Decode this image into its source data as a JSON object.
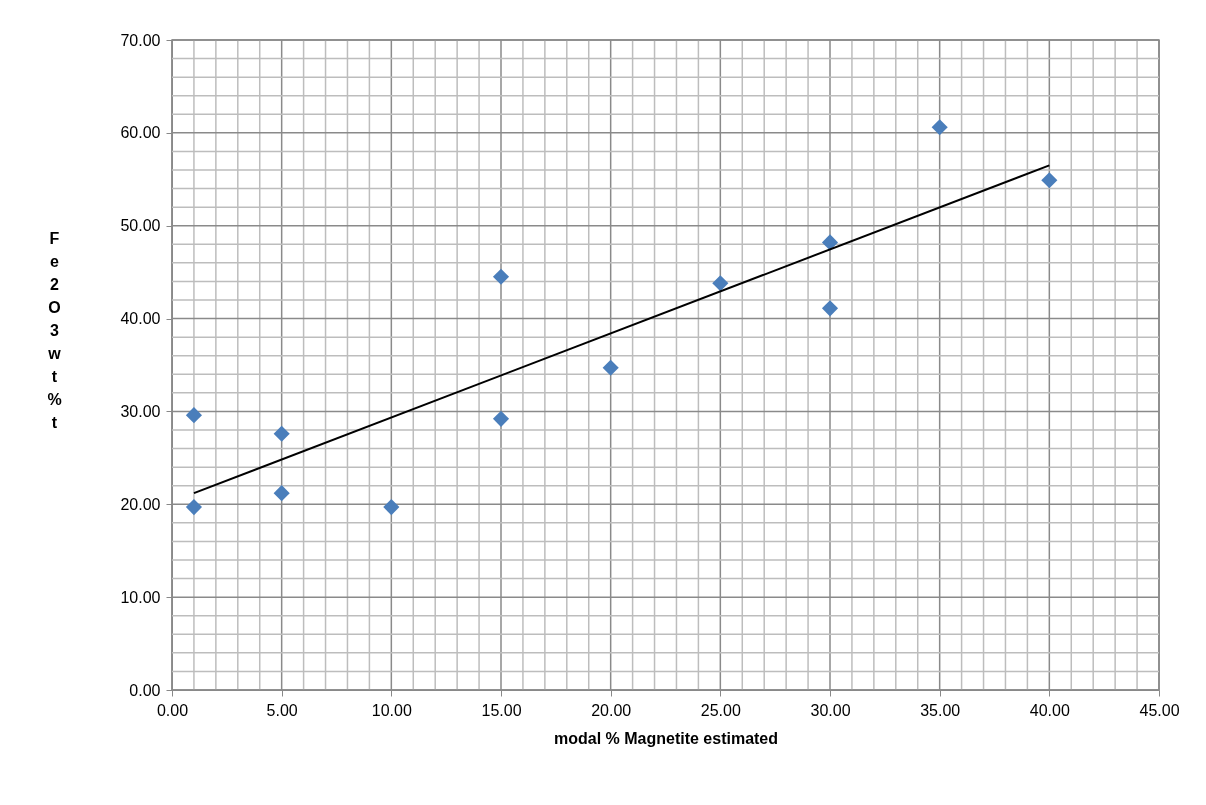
{
  "chart_data": {
    "type": "scatter",
    "xlabel": "modal % Magnetite estimated",
    "ylabel": "Fe2O3wt%t",
    "series": [
      {
        "color": "#4a7ebb",
        "marker": "diamond",
        "x": [
          1,
          1,
          5,
          5,
          10,
          15,
          15,
          20,
          25,
          30,
          30,
          35,
          40
        ],
        "values": [
          29.6,
          19.7,
          27.6,
          21.2,
          19.7,
          44.5,
          29.2,
          34.7,
          43.8,
          48.2,
          41.1,
          60.6,
          54.9
        ]
      },
      {
        "type": "line",
        "color": "#000000",
        "marker": "none",
        "line_style": "solid",
        "x": [
          1,
          40
        ],
        "values": [
          21.2,
          56.5
        ]
      }
    ],
    "xlim": [
      0,
      45
    ],
    "ylim": [
      0,
      70
    ],
    "xticks": [
      {
        "value": 0,
        "label": "0.00"
      },
      {
        "value": 1,
        "label": null
      },
      {
        "value": 2,
        "label": null
      },
      {
        "value": 3,
        "label": null
      },
      {
        "value": 4,
        "label": null
      },
      {
        "value": 5,
        "label": "5.00"
      },
      {
        "value": 6,
        "label": null
      },
      {
        "value": 7,
        "label": null
      },
      {
        "value": 8,
        "label": null
      },
      {
        "value": 9,
        "label": null
      },
      {
        "value": 10,
        "label": "10.00"
      },
      {
        "value": 11,
        "label": null
      },
      {
        "value": 12,
        "label": null
      },
      {
        "value": 13,
        "label": null
      },
      {
        "value": 14,
        "label": null
      },
      {
        "value": 15,
        "label": "15.00"
      },
      {
        "value": 16,
        "label": null
      },
      {
        "value": 17,
        "label": null
      },
      {
        "value": 18,
        "label": null
      },
      {
        "value": 19,
        "label": null
      },
      {
        "value": 20,
        "label": "20.00"
      },
      {
        "value": 21,
        "label": null
      },
      {
        "value": 22,
        "label": null
      },
      {
        "value": 23,
        "label": null
      },
      {
        "value": 24,
        "label": null
      },
      {
        "value": 25,
        "label": "25.00"
      },
      {
        "value": 26,
        "label": null
      },
      {
        "value": 27,
        "label": null
      },
      {
        "value": 28,
        "label": null
      },
      {
        "value": 29,
        "label": null
      },
      {
        "value": 30,
        "label": "30.00"
      },
      {
        "value": 31,
        "label": null
      },
      {
        "value": 32,
        "label": null
      },
      {
        "value": 33,
        "label": null
      },
      {
        "value": 34,
        "label": null
      },
      {
        "value": 35,
        "label": "35.00"
      },
      {
        "value": 36,
        "label": null
      },
      {
        "value": 37,
        "label": null
      },
      {
        "value": 38,
        "label": null
      },
      {
        "value": 39,
        "label": null
      },
      {
        "value": 40,
        "label": "40.00"
      },
      {
        "value": 41,
        "label": null
      },
      {
        "value": 42,
        "label": null
      },
      {
        "value": 43,
        "label": null
      },
      {
        "value": 44,
        "label": null
      },
      {
        "value": 45,
        "label": "45.00"
      }
    ],
    "yticks": [
      {
        "value": 0,
        "label": "0.00"
      },
      {
        "value": 2,
        "label": null
      },
      {
        "value": 4,
        "label": null
      },
      {
        "value": 6,
        "label": null
      },
      {
        "value": 8,
        "label": null
      },
      {
        "value": 10,
        "label": "10.00"
      },
      {
        "value": 12,
        "label": null
      },
      {
        "value": 14,
        "label": null
      },
      {
        "value": 16,
        "label": null
      },
      {
        "value": 18,
        "label": null
      },
      {
        "value": 20,
        "label": "20.00"
      },
      {
        "value": 22,
        "label": null
      },
      {
        "value": 24,
        "label": null
      },
      {
        "value": 26,
        "label": null
      },
      {
        "value": 28,
        "label": null
      },
      {
        "value": 30,
        "label": "30.00"
      },
      {
        "value": 32,
        "label": null
      },
      {
        "value": 34,
        "label": null
      },
      {
        "value": 36,
        "label": null
      },
      {
        "value": 38,
        "label": null
      },
      {
        "value": 40,
        "label": "40.00"
      },
      {
        "value": 42,
        "label": null
      },
      {
        "value": 44,
        "label": null
      },
      {
        "value": 46,
        "label": null
      },
      {
        "value": 48,
        "label": null
      },
      {
        "value": 50,
        "label": "50.00"
      },
      {
        "value": 52,
        "label": null
      },
      {
        "value": 54,
        "label": null
      },
      {
        "value": 56,
        "label": null
      },
      {
        "value": 58,
        "label": null
      },
      {
        "value": 60,
        "label": "60.00"
      },
      {
        "value": 62,
        "label": null
      },
      {
        "value": 64,
        "label": null
      },
      {
        "value": 66,
        "label": null
      },
      {
        "value": 68,
        "label": null
      },
      {
        "value": 70,
        "label": "70.00"
      }
    ],
    "grid": true
  }
}
